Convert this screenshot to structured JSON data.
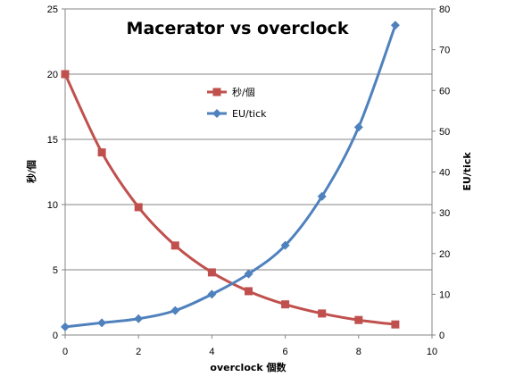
{
  "chart_data": {
    "type": "line",
    "title": "Macerator vs overclock",
    "xlabel": "overclock 個数",
    "ylabel_left": "秒/個",
    "ylabel_right": "EU/tick",
    "xlim": [
      0,
      10
    ],
    "ylim_left": [
      0,
      25
    ],
    "ylim_right": [
      0,
      80
    ],
    "x_ticks": [
      "0",
      "2",
      "4",
      "6",
      "8",
      "10"
    ],
    "y_left_ticks": [
      "0",
      "5",
      "10",
      "15",
      "20",
      "25"
    ],
    "y_right_ticks": [
      "0",
      "10",
      "20",
      "30",
      "40",
      "50",
      "60",
      "70",
      "80"
    ],
    "grid": true,
    "legend_position": "top-center",
    "series": [
      {
        "name": "秒/個",
        "axis": "left",
        "color": "#c0504d",
        "marker": "square",
        "x": [
          0,
          1,
          2,
          3,
          4,
          5,
          6,
          7,
          8,
          9
        ],
        "values": [
          20,
          14,
          9.8,
          6.86,
          4.8,
          3.36,
          2.35,
          1.65,
          1.15,
          0.81
        ]
      },
      {
        "name": "EU/tick",
        "axis": "right",
        "color": "#4f81bd",
        "marker": "diamond",
        "x": [
          0,
          1,
          2,
          3,
          4,
          5,
          6,
          7,
          8,
          9
        ],
        "values": [
          2,
          3,
          4,
          6,
          10,
          15,
          22,
          34,
          51,
          76
        ]
      }
    ]
  }
}
